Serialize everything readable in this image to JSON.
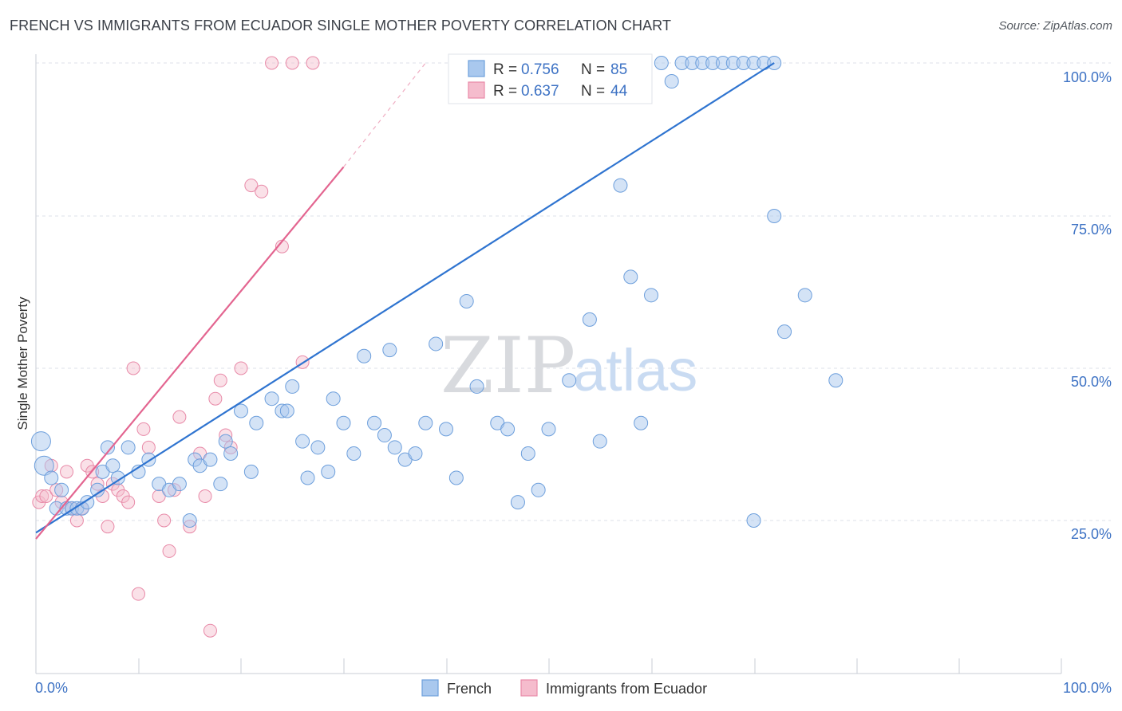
{
  "title": "FRENCH VS IMMIGRANTS FROM ECUADOR SINGLE MOTHER POVERTY CORRELATION CHART",
  "source": "Source: ZipAtlas.com",
  "watermark": {
    "zip": "ZIP",
    "atlas": "atlas"
  },
  "colors": {
    "french_fill": "#a9c8ee",
    "french_stroke": "#6d9fdc",
    "french_line": "#2f74d0",
    "ecuador_fill": "#f5bccd",
    "ecuador_stroke": "#e88aa8",
    "ecuador_line": "#e36590",
    "grid": "#dde2e8",
    "axis_label": "#3d72c4"
  },
  "legend_box": {
    "rows": [
      {
        "r_label": "R =",
        "r_value": "0.756",
        "n_label": "N =",
        "n_value": "85"
      },
      {
        "r_label": "R =",
        "r_value": "0.637",
        "n_label": "N =",
        "n_value": "44"
      }
    ]
  },
  "bottom_legend": [
    "French",
    "Immigrants from Ecuador"
  ],
  "chart_data": {
    "type": "scatter",
    "title": "FRENCH VS IMMIGRANTS FROM ECUADOR SINGLE MOTHER POVERTY CORRELATION CHART",
    "xlabel": "",
    "ylabel": "Single Mother Poverty",
    "x_tick_labels": [
      "0.0%",
      "100.0%"
    ],
    "y_tick_labels": [
      "25.0%",
      "50.0%",
      "75.0%",
      "100.0%"
    ],
    "xlim": [
      0,
      100
    ],
    "ylim": [
      0,
      100
    ],
    "grid": true,
    "legend_position": "top-center",
    "series": [
      {
        "name": "French",
        "R": 0.756,
        "N": 85,
        "trend": {
          "x": [
            0,
            72
          ],
          "y": [
            23,
            100
          ]
        },
        "points": [
          [
            0.5,
            38
          ],
          [
            0.8,
            34
          ],
          [
            1.5,
            32
          ],
          [
            2,
            27
          ],
          [
            2.5,
            30
          ],
          [
            3,
            27
          ],
          [
            3.5,
            27
          ],
          [
            4,
            27
          ],
          [
            4.5,
            27
          ],
          [
            5,
            28
          ],
          [
            6,
            30
          ],
          [
            6.5,
            33
          ],
          [
            7,
            37
          ],
          [
            7.5,
            34
          ],
          [
            8,
            32
          ],
          [
            9,
            37
          ],
          [
            10,
            33
          ],
          [
            11,
            35
          ],
          [
            12,
            31
          ],
          [
            13,
            30
          ],
          [
            14,
            31
          ],
          [
            15,
            25
          ],
          [
            15.5,
            35
          ],
          [
            16,
            34
          ],
          [
            17,
            35
          ],
          [
            18,
            31
          ],
          [
            18.5,
            38
          ],
          [
            19,
            36
          ],
          [
            20,
            43
          ],
          [
            21,
            33
          ],
          [
            21.5,
            41
          ],
          [
            23,
            45
          ],
          [
            24,
            43
          ],
          [
            24.5,
            43
          ],
          [
            25,
            47
          ],
          [
            26,
            38
          ],
          [
            26.5,
            32
          ],
          [
            27.5,
            37
          ],
          [
            28.5,
            33
          ],
          [
            29,
            45
          ],
          [
            30,
            41
          ],
          [
            31,
            36
          ],
          [
            32,
            52
          ],
          [
            33,
            41
          ],
          [
            34,
            39
          ],
          [
            34.5,
            53
          ],
          [
            35,
            37
          ],
          [
            36,
            35
          ],
          [
            37,
            36
          ],
          [
            38,
            41
          ],
          [
            39,
            54
          ],
          [
            40,
            40
          ],
          [
            41,
            32
          ],
          [
            42,
            61
          ],
          [
            43,
            47
          ],
          [
            45,
            41
          ],
          [
            46,
            40
          ],
          [
            47,
            28
          ],
          [
            48,
            36
          ],
          [
            49,
            30
          ],
          [
            50,
            40
          ],
          [
            52,
            48
          ],
          [
            54,
            58
          ],
          [
            55,
            38
          ],
          [
            57,
            80
          ],
          [
            58,
            65
          ],
          [
            59,
            41
          ],
          [
            60,
            62
          ],
          [
            61,
            100
          ],
          [
            62,
            97
          ],
          [
            63,
            100
          ],
          [
            64,
            100
          ],
          [
            65,
            100
          ],
          [
            66,
            100
          ],
          [
            67,
            100
          ],
          [
            68,
            100
          ],
          [
            69,
            100
          ],
          [
            70,
            100
          ],
          [
            71,
            100
          ],
          [
            72,
            100
          ],
          [
            70,
            25
          ],
          [
            72,
            75
          ],
          [
            73,
            56
          ],
          [
            75,
            62
          ],
          [
            78,
            48
          ]
        ]
      },
      {
        "name": "Immigrants from Ecuador",
        "R": 0.637,
        "N": 44,
        "trend": {
          "x": [
            0,
            30
          ],
          "y": [
            22,
            83
          ]
        },
        "trend_dashed": {
          "x": [
            30,
            38
          ],
          "y": [
            83,
            100
          ]
        },
        "points": [
          [
            0.3,
            28
          ],
          [
            0.6,
            29
          ],
          [
            1,
            29
          ],
          [
            1.5,
            34
          ],
          [
            2,
            30
          ],
          [
            2.5,
            28
          ],
          [
            3,
            33
          ],
          [
            3.5,
            27
          ],
          [
            4,
            25
          ],
          [
            4.5,
            27
          ],
          [
            5,
            34
          ],
          [
            5.5,
            33
          ],
          [
            6,
            31
          ],
          [
            6.5,
            29
          ],
          [
            7,
            24
          ],
          [
            7.5,
            31
          ],
          [
            8,
            30
          ],
          [
            8.5,
            29
          ],
          [
            9,
            28
          ],
          [
            9.5,
            50
          ],
          [
            10,
            13
          ],
          [
            10.5,
            40
          ],
          [
            11,
            37
          ],
          [
            12,
            29
          ],
          [
            12.5,
            25
          ],
          [
            13,
            20
          ],
          [
            13.5,
            30
          ],
          [
            14,
            42
          ],
          [
            15,
            24
          ],
          [
            16,
            36
          ],
          [
            16.5,
            29
          ],
          [
            17,
            7
          ],
          [
            17.5,
            45
          ],
          [
            18,
            48
          ],
          [
            18.5,
            39
          ],
          [
            19,
            37
          ],
          [
            20,
            50
          ],
          [
            21,
            80
          ],
          [
            22,
            79
          ],
          [
            23,
            100
          ],
          [
            24,
            70
          ],
          [
            25,
            100
          ],
          [
            26,
            51
          ],
          [
            27,
            100
          ]
        ]
      }
    ]
  }
}
